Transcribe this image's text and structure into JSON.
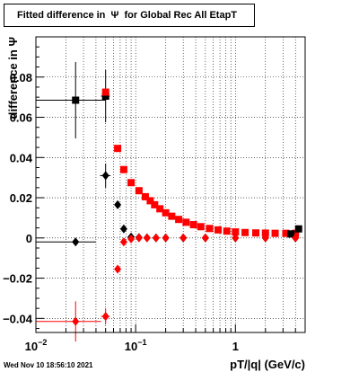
{
  "chart_data": {
    "type": "scatter",
    "title": "Fitted difference in  Ψ  for Global Rec All EtapT",
    "xlabel": "pT/|q| (GeV/c)",
    "ylabel": "difference in  Ψ",
    "x_scale": "log",
    "xlim": [
      0.01,
      5.0
    ],
    "ylim": [
      -0.047,
      0.1
    ],
    "grid": true,
    "x_major_ticks": [
      {
        "value": 0.01,
        "base": "10",
        "exp": "−2"
      },
      {
        "value": 0.1,
        "base": "10",
        "exp": "−1"
      },
      {
        "value": 1,
        "base": "1",
        "exp": ""
      }
    ],
    "y_ticks": [
      {
        "value": -0.04,
        "label": "−0.04"
      },
      {
        "value": -0.02,
        "label": "−0.02"
      },
      {
        "value": 0,
        "label": "0"
      },
      {
        "value": 0.02,
        "label": "0.02"
      },
      {
        "value": 0.04,
        "label": "0.04"
      },
      {
        "value": 0.06,
        "label": "0.06"
      },
      {
        "value": 0.08,
        "label": "0.08"
      }
    ],
    "series": [
      {
        "marker": "square",
        "color": "#000000",
        "points": [
          {
            "x": 0.025,
            "y": 0.0685,
            "xerr": [
              0.01,
              0.05
            ],
            "yerr": 0.019
          },
          {
            "x": 0.05,
            "y": 0.0705,
            "xerr": [
              0.045,
              0.055
            ],
            "yerr": 0.013
          }
        ]
      },
      {
        "marker": "square",
        "color": "#ff0000",
        "points": [
          {
            "x": 0.05,
            "y": 0.0725
          },
          {
            "x": 0.066,
            "y": 0.0445
          },
          {
            "x": 0.076,
            "y": 0.034
          },
          {
            "x": 0.09,
            "y": 0.0275
          },
          {
            "x": 0.108,
            "y": 0.0235
          },
          {
            "x": 0.125,
            "y": 0.0205
          },
          {
            "x": 0.14,
            "y": 0.0185
          },
          {
            "x": 0.155,
            "y": 0.0165
          },
          {
            "x": 0.175,
            "y": 0.0145
          },
          {
            "x": 0.2,
            "y": 0.0125
          },
          {
            "x": 0.23,
            "y": 0.0108
          },
          {
            "x": 0.27,
            "y": 0.0092
          },
          {
            "x": 0.32,
            "y": 0.0078
          },
          {
            "x": 0.38,
            "y": 0.0066
          },
          {
            "x": 0.45,
            "y": 0.0056
          },
          {
            "x": 0.55,
            "y": 0.0047
          },
          {
            "x": 0.67,
            "y": 0.004
          },
          {
            "x": 0.82,
            "y": 0.0034
          },
          {
            "x": 1.0,
            "y": 0.003
          },
          {
            "x": 1.25,
            "y": 0.0027
          },
          {
            "x": 1.6,
            "y": 0.0025
          },
          {
            "x": 2.0,
            "y": 0.0024
          },
          {
            "x": 2.5,
            "y": 0.0023
          },
          {
            "x": 3.2,
            "y": 0.0023
          },
          {
            "x": 4.0,
            "y": 0.0023
          }
        ]
      },
      {
        "marker": "square",
        "color": "#000000",
        "points": [
          {
            "x": 3.6,
            "y": 0.002
          },
          {
            "x": 4.3,
            "y": 0.0045
          }
        ]
      },
      {
        "marker": "diamond",
        "color": "#000000",
        "points": [
          {
            "x": 0.025,
            "y": -0.002,
            "xerr": [
              0.01,
              0.04
            ],
            "yerr": 0.0
          },
          {
            "x": 0.05,
            "y": 0.031,
            "xerr": [
              0.044,
              0.056
            ],
            "yerr": 0.006
          },
          {
            "x": 0.066,
            "y": 0.0165
          },
          {
            "x": 0.076,
            "y": 0.0045
          },
          {
            "x": 0.09,
            "y": 0.0005
          },
          {
            "x": 0.108,
            "y": 0.0002
          },
          {
            "x": 0.13,
            "y": 0.0001
          },
          {
            "x": 0.16,
            "y": 0.0
          },
          {
            "x": 0.2,
            "y": 0.0
          },
          {
            "x": 0.3,
            "y": 0.0
          },
          {
            "x": 0.5,
            "y": 0.0
          },
          {
            "x": 1.0,
            "y": 0.0
          },
          {
            "x": 2.0,
            "y": 0.0
          },
          {
            "x": 4.0,
            "y": 0.0
          }
        ]
      },
      {
        "marker": "diamond",
        "color": "#ff0000",
        "points": [
          {
            "x": 0.025,
            "y": -0.0415,
            "xerr": [
              0.01,
              0.045
            ],
            "yerr": 0.01
          },
          {
            "x": 0.05,
            "y": -0.039,
            "xerr": [
              0.045,
              0.055
            ],
            "yerr": 0.004
          },
          {
            "x": 0.066,
            "y": -0.0155
          },
          {
            "x": 0.076,
            "y": -0.002
          },
          {
            "x": 0.09,
            "y": -0.0005
          },
          {
            "x": 0.108,
            "y": 0.0
          },
          {
            "x": 0.13,
            "y": 0.0
          },
          {
            "x": 0.16,
            "y": 0.0
          },
          {
            "x": 0.2,
            "y": 0.0
          },
          {
            "x": 0.3,
            "y": 0.0
          },
          {
            "x": 0.5,
            "y": 0.0
          },
          {
            "x": 1.0,
            "y": 0.0
          },
          {
            "x": 2.0,
            "y": 0.0
          },
          {
            "x": 4.0,
            "y": 0.0
          }
        ]
      }
    ]
  },
  "footer": {
    "timestamp": "Wed Nov 10 18:56:10 2021"
  }
}
